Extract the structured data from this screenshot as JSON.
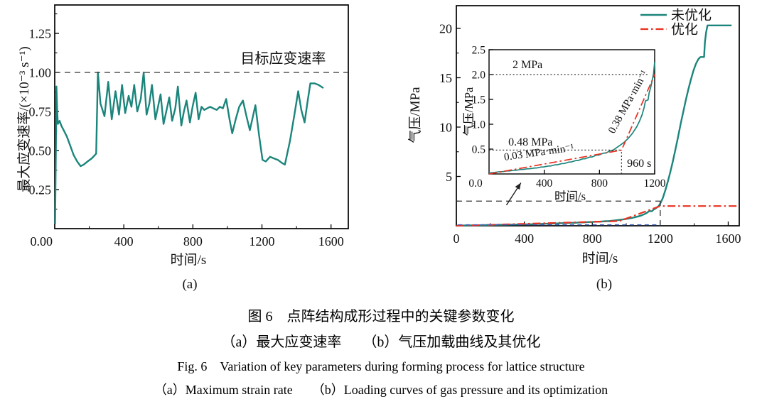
{
  "captions": {
    "cn_title": "图 6　点阵结构成形过程中的关键参数变化",
    "cn_sub": "（a）最大应变速率　　（b）气压加载曲线及其优化",
    "en_title": "Fig. 6　Variation of key parameters during forming process for lattice structure",
    "en_sub": "（a）Maximum strain rate　　（b）Loading curves of gas pressure and its optimization"
  },
  "colors": {
    "teal": "#1b857b",
    "red": "#e93020",
    "dash_black": "#333333",
    "dash_blue": "#3f63c8"
  },
  "chart_data": [
    {
      "id": "chart-a",
      "type": "line",
      "panel_label": "(a)",
      "xlabel": "时间/s",
      "ylabel": "最大应变速率/(×10⁻³ s⁻¹)",
      "xlim": [
        0,
        1700
      ],
      "ylim": [
        0,
        1.432
      ],
      "x_ticks": {
        "values": [
          400,
          800,
          1200,
          1600
        ],
        "labels": [
          "400",
          "800",
          "1200",
          "1600"
        ]
      },
      "x_minor": [
        200,
        600,
        1000,
        1400
      ],
      "y_ticks": {
        "values": [
          0.25,
          0.5,
          0.75,
          1.0,
          1.25
        ],
        "labels": [
          "0.25",
          "0.50",
          "0.75",
          "1.00",
          "1.25"
        ]
      },
      "y_minor": [
        0.125,
        0.375,
        0.625,
        0.875,
        1.125,
        1.375
      ],
      "corner_label": "0.00",
      "series": [
        {
          "name": "最大应变速率",
          "color": "#1b857b",
          "style": "solid",
          "width": 2.4,
          "points": [
            [
              2,
              0.03
            ],
            [
              7,
              0.55
            ],
            [
              10,
              0.91
            ],
            [
              14,
              0.76
            ],
            [
              18,
              0.67
            ],
            [
              28,
              0.69
            ],
            [
              38,
              0.66
            ],
            [
              52,
              0.63
            ],
            [
              70,
              0.59
            ],
            [
              90,
              0.53
            ],
            [
              110,
              0.47
            ],
            [
              130,
              0.43
            ],
            [
              150,
              0.4
            ],
            [
              168,
              0.41
            ],
            [
              190,
              0.43
            ],
            [
              215,
              0.45
            ],
            [
              240,
              0.48
            ],
            [
              250,
              1.0
            ],
            [
              265,
              0.8
            ],
            [
              288,
              0.72
            ],
            [
              310,
              0.94
            ],
            [
              330,
              0.7
            ],
            [
              352,
              0.88
            ],
            [
              372,
              0.73
            ],
            [
              390,
              0.92
            ],
            [
              408,
              0.74
            ],
            [
              428,
              0.85
            ],
            [
              444,
              0.78
            ],
            [
              460,
              0.92
            ],
            [
              478,
              0.75
            ],
            [
              498,
              0.83
            ],
            [
              515,
              1.0
            ],
            [
              532,
              0.73
            ],
            [
              548,
              0.8
            ],
            [
              563,
              0.92
            ],
            [
              583,
              0.7
            ],
            [
              598,
              0.78
            ],
            [
              613,
              0.86
            ],
            [
              630,
              0.67
            ],
            [
              648,
              0.76
            ],
            [
              663,
              0.84
            ],
            [
              680,
              0.69
            ],
            [
              698,
              0.77
            ],
            [
              713,
              0.91
            ],
            [
              733,
              0.66
            ],
            [
              748,
              0.75
            ],
            [
              763,
              0.82
            ],
            [
              783,
              0.68
            ],
            [
              798,
              0.78
            ],
            [
              816,
              0.87
            ],
            [
              833,
              0.7
            ],
            [
              850,
              0.78
            ],
            [
              866,
              0.76
            ],
            [
              883,
              0.77
            ],
            [
              900,
              0.78
            ],
            [
              918,
              0.77
            ],
            [
              938,
              0.76
            ],
            [
              956,
              0.78
            ],
            [
              974,
              0.77
            ],
            [
              993,
              0.83
            ],
            [
              1012,
              0.7
            ],
            [
              1028,
              0.61
            ],
            [
              1048,
              0.7
            ],
            [
              1068,
              0.78
            ],
            [
              1090,
              0.82
            ],
            [
              1110,
              0.72
            ],
            [
              1130,
              0.63
            ],
            [
              1148,
              0.72
            ],
            [
              1162,
              0.79
            ],
            [
              1183,
              0.6
            ],
            [
              1203,
              0.44
            ],
            [
              1222,
              0.43
            ],
            [
              1247,
              0.46
            ],
            [
              1268,
              0.45
            ],
            [
              1292,
              0.44
            ],
            [
              1316,
              0.42
            ],
            [
              1333,
              0.41
            ],
            [
              1362,
              0.56
            ],
            [
              1388,
              0.73
            ],
            [
              1410,
              0.88
            ],
            [
              1428,
              0.76
            ],
            [
              1447,
              0.68
            ],
            [
              1465,
              0.82
            ],
            [
              1480,
              0.93
            ],
            [
              1504,
              0.93
            ],
            [
              1528,
              0.92
            ],
            [
              1556,
              0.9
            ]
          ]
        }
      ],
      "annotations": [
        {
          "type": "hline",
          "v": 1.0,
          "t1": 0,
          "t2": 1700,
          "color": "#333333",
          "style": "dashed",
          "width": 1.3
        },
        {
          "type": "text",
          "text": "目标应变速率",
          "t": 1570,
          "v": 1.06,
          "anchor": "end",
          "size": 20
        }
      ]
    },
    {
      "id": "chart-b",
      "type": "line",
      "panel_label": "(b)",
      "xlabel": "时间/s",
      "ylabel": "气压/MPa",
      "xlim": [
        0,
        1665
      ],
      "ylim": [
        0,
        22.3
      ],
      "x_ticks": {
        "values": [
          0,
          400,
          800,
          1200,
          1600
        ],
        "labels": [
          "0",
          "400",
          "800",
          "1200",
          "1600"
        ]
      },
      "x_minor": [
        200,
        600,
        1000,
        1400
      ],
      "y_ticks": {
        "values": [
          5,
          10,
          15,
          20
        ],
        "labels": [
          "5",
          "10",
          "15",
          "20"
        ]
      },
      "y_minor": [
        2.5,
        7.5,
        12.5,
        17.5
      ],
      "legend": {
        "entries": [
          {
            "label": "未优化",
            "series": 0
          },
          {
            "label": "优化",
            "series": 1
          }
        ]
      },
      "series": [
        {
          "name": "未优化",
          "color": "#1b857b",
          "style": "solid",
          "width": 2.4,
          "points": [
            [
              0,
              0.02
            ],
            [
              40,
              0.03
            ],
            [
              80,
              0.045
            ],
            [
              95,
              0.045
            ],
            [
              130,
              0.06
            ],
            [
              145,
              0.06
            ],
            [
              180,
              0.075
            ],
            [
              195,
              0.075
            ],
            [
              230,
              0.09
            ],
            [
              245,
              0.09
            ],
            [
              280,
              0.105
            ],
            [
              295,
              0.105
            ],
            [
              330,
              0.12
            ],
            [
              345,
              0.12
            ],
            [
              380,
              0.14
            ],
            [
              395,
              0.14
            ],
            [
              430,
              0.16
            ],
            [
              445,
              0.16
            ],
            [
              480,
              0.185
            ],
            [
              495,
              0.185
            ],
            [
              530,
              0.21
            ],
            [
              545,
              0.21
            ],
            [
              580,
              0.24
            ],
            [
              595,
              0.24
            ],
            [
              630,
              0.27
            ],
            [
              645,
              0.27
            ],
            [
              680,
              0.305
            ],
            [
              695,
              0.305
            ],
            [
              730,
              0.34
            ],
            [
              745,
              0.34
            ],
            [
              780,
              0.38
            ],
            [
              795,
              0.38
            ],
            [
              830,
              0.42
            ],
            [
              845,
              0.42
            ],
            [
              880,
              0.47
            ],
            [
              895,
              0.47
            ],
            [
              920,
              0.52
            ],
            [
              950,
              0.58
            ],
            [
              980,
              0.64
            ],
            [
              1010,
              0.72
            ],
            [
              1040,
              0.82
            ],
            [
              1070,
              0.95
            ],
            [
              1090,
              1.06
            ],
            [
              1110,
              1.2
            ],
            [
              1125,
              1.35
            ],
            [
              1133,
              1.47
            ],
            [
              1152,
              1.49
            ],
            [
              1160,
              1.63
            ],
            [
              1172,
              1.75
            ],
            [
              1182,
              1.88
            ],
            [
              1192,
              2.02
            ],
            [
              1200,
              2.25
            ],
            [
              1215,
              2.8
            ],
            [
              1230,
              3.6
            ],
            [
              1245,
              4.5
            ],
            [
              1260,
              5.5
            ],
            [
              1275,
              6.6
            ],
            [
              1290,
              7.8
            ],
            [
              1305,
              9.0
            ],
            [
              1320,
              10.3
            ],
            [
              1335,
              11.5
            ],
            [
              1350,
              12.7
            ],
            [
              1365,
              13.8
            ],
            [
              1380,
              14.8
            ],
            [
              1395,
              15.7
            ],
            [
              1410,
              16.4
            ],
            [
              1425,
              16.9
            ],
            [
              1437,
              17.1
            ],
            [
              1458,
              17.1
            ],
            [
              1463,
              18.6
            ],
            [
              1470,
              19.6
            ],
            [
              1478,
              20.3
            ],
            [
              1620,
              20.3
            ]
          ]
        },
        {
          "name": "优化",
          "color": "#e93020",
          "style": "dashdot",
          "width": 2.2,
          "points": [
            [
              0,
              0.0
            ],
            [
              960,
              0.48
            ],
            [
              1200,
              2.0
            ],
            [
              1660,
              2.0
            ]
          ]
        }
      ],
      "annotations": [
        {
          "type": "hline",
          "v": 2.5,
          "t1": 0,
          "t2": 1200,
          "color": "#333333",
          "style": "dashed",
          "width": 1.3
        },
        {
          "type": "vline",
          "t": 1200,
          "v1": 0,
          "v2": 2.5,
          "color": "#333333",
          "style": "dashed",
          "width": 1.3
        },
        {
          "type": "hline",
          "v": 0.1,
          "t1": 10,
          "t2": 1200,
          "color": "#3f63c8",
          "style": "bluedash",
          "width": 1.4
        },
        {
          "type": "arrow",
          "from": [
            295,
            2.1
          ],
          "to": [
            380,
            4.35
          ],
          "color": "#222222",
          "width": 1.4
        }
      ],
      "inset": {
        "xlabel": "时间/s",
        "ylabel": "气压/MPa",
        "xlim": [
          0,
          1200
        ],
        "ylim": [
          0,
          2.5
        ],
        "x_ticks": {
          "values": [
            400,
            800,
            1200
          ],
          "labels": [
            "400",
            "800",
            "1200"
          ]
        },
        "y_ticks": {
          "values": [
            0.5,
            1.0,
            1.5,
            2.0,
            2.5
          ],
          "labels": [
            "0.5",
            "1.0",
            "1.5",
            "2.0",
            "2.5"
          ]
        },
        "corner_label": "0.0",
        "series_ref": [
          0,
          1
        ],
        "annotations": [
          {
            "type": "hline",
            "v": 2.0,
            "t1": 0,
            "t2": 1160,
            "color": "#333333",
            "style": "dotted",
            "width": 1.2
          },
          {
            "type": "hline",
            "v": 0.48,
            "t1": 0,
            "t2": 960,
            "color": "#333333",
            "style": "dotted",
            "width": 1.2
          },
          {
            "type": "vline",
            "t": 960,
            "v1": 0,
            "v2": 0.48,
            "color": "#333333",
            "style": "dotted",
            "width": 1.2
          },
          {
            "type": "text",
            "text": "2 MPa",
            "t": 170,
            "v": 2.13,
            "anchor": "start",
            "size": 16
          },
          {
            "type": "text",
            "text": "0.48 MPa",
            "t": 140,
            "v": 0.57,
            "anchor": "start",
            "size": 16
          },
          {
            "type": "text",
            "text": "960 s",
            "t": 1000,
            "v": 0.14,
            "anchor": "start",
            "size": 16
          },
          {
            "type": "text",
            "text": "0.03 MPa·min⁻¹",
            "t": 365,
            "v": 0.37,
            "anchor": "middle",
            "rot": -8,
            "size": 15
          },
          {
            "type": "text",
            "text": "0.38 MPa·min⁻¹",
            "t": 1028,
            "v": 1.42,
            "anchor": "middle",
            "rot": -61,
            "size": 15
          }
        ]
      }
    }
  ]
}
